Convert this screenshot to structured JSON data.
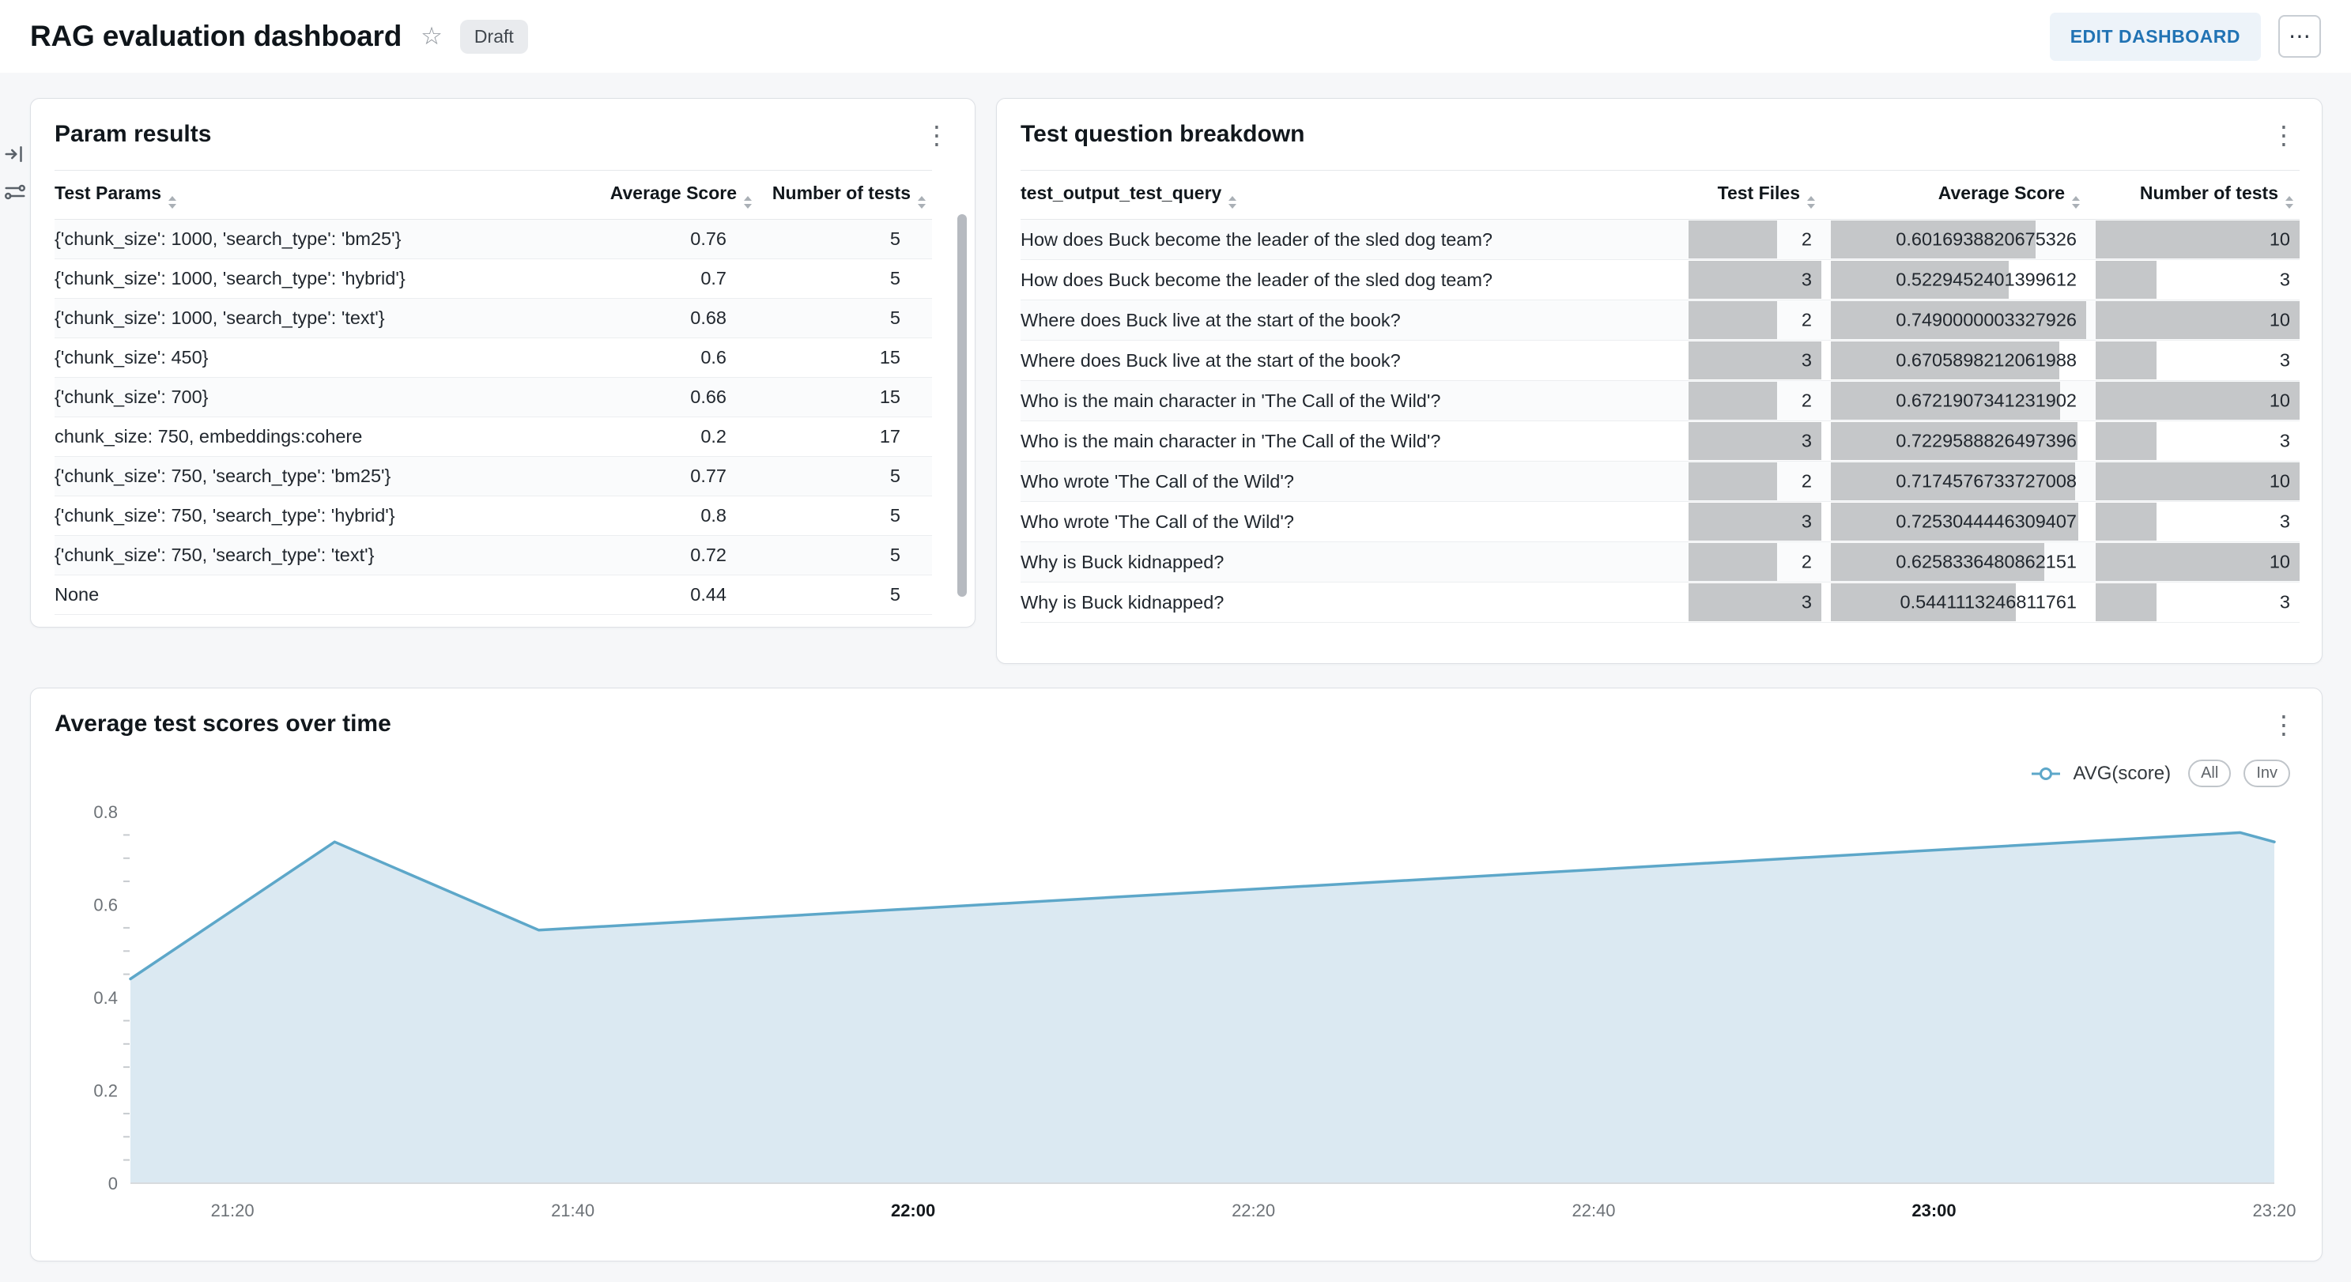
{
  "header": {
    "title": "RAG evaluation dashboard",
    "status_badge": "Draft",
    "edit_button": "EDIT DASHBOARD"
  },
  "param_results": {
    "title": "Param results",
    "columns": [
      {
        "label": "Test Params",
        "align": "left"
      },
      {
        "label": "Average Score",
        "align": "right"
      },
      {
        "label": "Number of tests",
        "align": "right"
      }
    ],
    "rows": [
      [
        "{'chunk_size': 1000, 'search_type': 'bm25'}",
        "0.76",
        "5"
      ],
      [
        "{'chunk_size': 1000, 'search_type': 'hybrid'}",
        "0.7",
        "5"
      ],
      [
        "{'chunk_size': 1000, 'search_type': 'text'}",
        "0.68",
        "5"
      ],
      [
        "{'chunk_size': 450}",
        "0.6",
        "15"
      ],
      [
        "{'chunk_size': 700}",
        "0.66",
        "15"
      ],
      [
        "chunk_size: 750, embeddings:cohere",
        "0.2",
        "17"
      ],
      [
        "{'chunk_size': 750, 'search_type': 'bm25'}",
        "0.77",
        "5"
      ],
      [
        "{'chunk_size': 750, 'search_type': 'hybrid'}",
        "0.8",
        "5"
      ],
      [
        "{'chunk_size': 750, 'search_type': 'text'}",
        "0.72",
        "5"
      ],
      [
        "None",
        "0.44",
        "5"
      ]
    ]
  },
  "question_breakdown": {
    "title": "Test question breakdown",
    "columns": [
      {
        "label": "test_output_test_query",
        "align": "left"
      },
      {
        "label": "Test Files",
        "align": "right",
        "bar_max": 3
      },
      {
        "label": "Average Score",
        "align": "right",
        "bar_max": 0.7490000003327926
      },
      {
        "label": "Number of tests",
        "align": "right",
        "bar_max": 10
      }
    ],
    "rows": [
      [
        "How does Buck become the leader of the sled dog team?",
        "2",
        "0.6016938820675326",
        "10"
      ],
      [
        "How does Buck become the leader of the sled dog team?",
        "3",
        "0.5229452401399612",
        "3"
      ],
      [
        "Where does Buck live at the start of the book?",
        "2",
        "0.7490000003327926",
        "10"
      ],
      [
        "Where does Buck live at the start of the book?",
        "3",
        "0.6705898212061988",
        "3"
      ],
      [
        "Who is the main character in 'The Call of the Wild'?",
        "2",
        "0.6721907341231902",
        "10"
      ],
      [
        "Who is the main character in 'The Call of the Wild'?",
        "3",
        "0.7229588826497396",
        "3"
      ],
      [
        "Who wrote 'The Call of the Wild'?",
        "2",
        "0.7174576733727008",
        "10"
      ],
      [
        "Who wrote 'The Call of the Wild'?",
        "3",
        "0.7253044446309407",
        "3"
      ],
      [
        "Why is Buck kidnapped?",
        "2",
        "0.6258336480862151",
        "10"
      ],
      [
        "Why is Buck kidnapped?",
        "3",
        "0.5441113246811761",
        "3"
      ]
    ]
  },
  "scores_chart": {
    "title": "Average test scores over time",
    "legend_series": "AVG(score)",
    "legend_buttons": [
      "All",
      "Inv"
    ]
  },
  "chart_data": {
    "type": "area",
    "title": "Average test scores over time",
    "series": [
      {
        "name": "AVG(score)",
        "points": [
          [
            "21:14",
            0.44
          ],
          [
            "21:26",
            0.735
          ],
          [
            "21:38",
            0.545
          ],
          [
            "23:18",
            0.755
          ],
          [
            "23:20",
            0.735
          ]
        ]
      }
    ],
    "x_ticks": [
      "21:20",
      "21:40",
      "22:00",
      "22:20",
      "22:40",
      "23:00",
      "23:20"
    ],
    "x_bold_ticks": [
      "22:00",
      "23:00"
    ],
    "xlabel": "",
    "ylabel": "",
    "ylim": [
      0,
      0.8
    ],
    "y_ticks": [
      0,
      0.2,
      0.4,
      0.6,
      0.8
    ],
    "y_minor_step": 0.05,
    "grid": false,
    "legend_position": "top-right",
    "line_color": "#5da7c9",
    "fill_color": "#dbe9f2"
  }
}
